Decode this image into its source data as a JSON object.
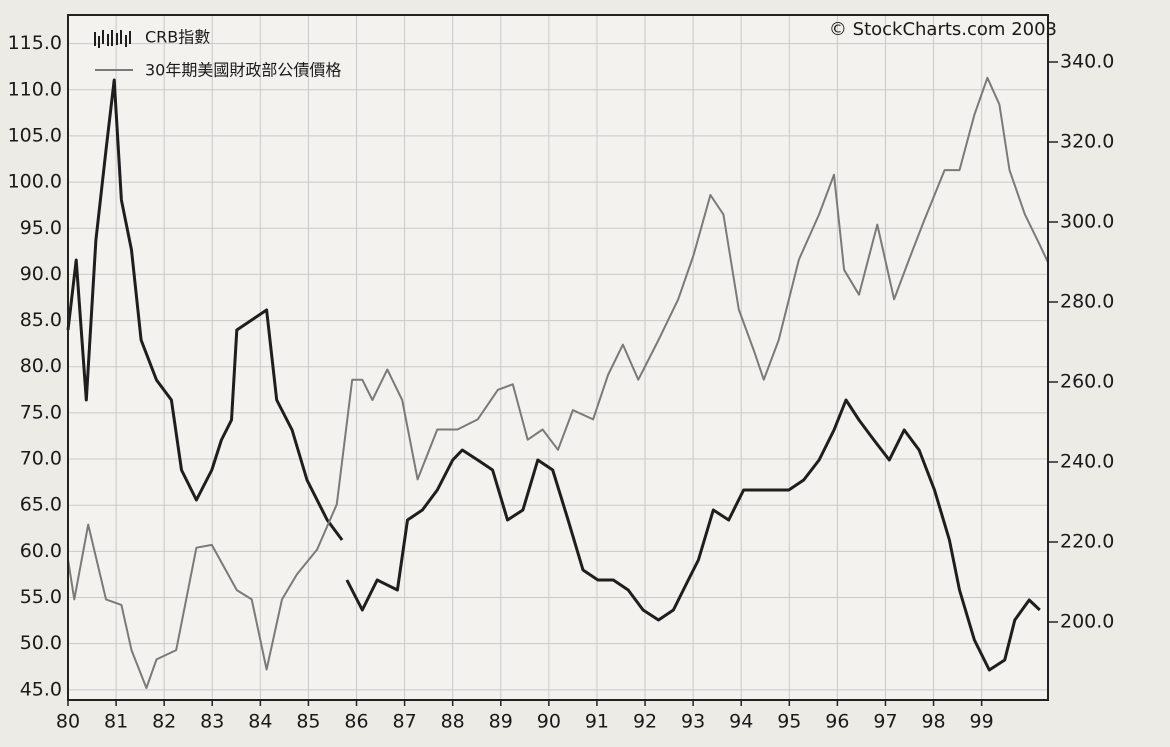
{
  "chart_data": {
    "type": "line",
    "annotation": "© StockCharts.com 2003",
    "grid": true,
    "legend": "top-left",
    "xlim": [
      1980,
      2000.38
    ],
    "xticks": [
      {
        "value": 1980,
        "label": "80"
      },
      {
        "value": 1981,
        "label": "81"
      },
      {
        "value": 1982,
        "label": "82"
      },
      {
        "value": 1983,
        "label": "83"
      },
      {
        "value": 1984,
        "label": "84"
      },
      {
        "value": 1985,
        "label": "85"
      },
      {
        "value": 1986,
        "label": "86"
      },
      {
        "value": 1987,
        "label": "87"
      },
      {
        "value": 1988,
        "label": "88"
      },
      {
        "value": 1989,
        "label": "89"
      },
      {
        "value": 1990,
        "label": "90"
      },
      {
        "value": 1991,
        "label": "91"
      },
      {
        "value": 1992,
        "label": "92"
      },
      {
        "value": 1993,
        "label": "93"
      },
      {
        "value": 1994,
        "label": "94"
      },
      {
        "value": 1995,
        "label": "95"
      },
      {
        "value": 1996,
        "label": "96"
      },
      {
        "value": 1997,
        "label": "97"
      },
      {
        "value": 1998,
        "label": "98"
      },
      {
        "value": 1999,
        "label": "99"
      }
    ],
    "ylim": [
      43.9,
      118.1
    ],
    "yticks": [
      {
        "value": 45,
        "label": "45.0"
      },
      {
        "value": 50,
        "label": "50.0"
      },
      {
        "value": 55,
        "label": "55.0"
      },
      {
        "value": 60,
        "label": "60.0"
      },
      {
        "value": 65,
        "label": "65.0"
      },
      {
        "value": 70,
        "label": "70.0"
      },
      {
        "value": 75,
        "label": "75.0"
      },
      {
        "value": 80,
        "label": "80.0"
      },
      {
        "value": 85,
        "label": "85.0"
      },
      {
        "value": 90,
        "label": "90.0"
      },
      {
        "value": 95,
        "label": "95.0"
      },
      {
        "value": 100,
        "label": "100.0"
      },
      {
        "value": 105,
        "label": "105.0"
      },
      {
        "value": 110,
        "label": "110.0"
      },
      {
        "value": 115,
        "label": "115.0"
      }
    ],
    "y2lim": [
      180.5,
      351.75
    ],
    "y2ticks": [
      {
        "value": 200,
        "label": "200.0"
      },
      {
        "value": 220,
        "label": "220.0"
      },
      {
        "value": 240,
        "label": "240.0"
      },
      {
        "value": 260,
        "label": "260.0"
      },
      {
        "value": 280,
        "label": "280.0"
      },
      {
        "value": 300,
        "label": "300.0"
      },
      {
        "value": 320,
        "label": "320.0"
      },
      {
        "value": 340,
        "label": "340.0"
      }
    ],
    "series": [
      {
        "name": "CRB指數",
        "color": "#1e1e1e",
        "axis": "y2",
        "x": [
          1980.0,
          1980.17,
          1980.38,
          1980.58,
          1980.79,
          1980.96,
          1981.11,
          1981.32,
          1981.52,
          1981.84,
          1982.15,
          1982.36,
          1982.67,
          1982.99,
          1983.19,
          1983.4,
          1983.51,
          1983.82,
          1984.13,
          1984.34,
          1984.66,
          1984.97,
          1985.39,
          1985.7,
          1985.75,
          1985.8,
          1986.12,
          1986.43,
          1986.85,
          1987.06,
          1987.37,
          1987.68,
          1988.0,
          1988.2,
          1988.52,
          1988.83,
          1989.14,
          1989.46,
          1989.77,
          1990.08,
          1990.4,
          1990.71,
          1991.02,
          1991.34,
          1991.65,
          1991.96,
          1992.28,
          1992.59,
          1992.9,
          1993.11,
          1993.42,
          1993.74,
          1994.05,
          1994.36,
          1994.68,
          1994.99,
          1995.3,
          1995.62,
          1995.93,
          1996.18,
          1996.45,
          1996.76,
          1997.08,
          1997.39,
          1997.7,
          1998.02,
          1998.33,
          1998.54,
          1998.85,
          1999.16,
          1999.48,
          1999.69,
          1999.99,
          2000.21
        ],
        "values": [
          273,
          290.5,
          255.5,
          295.5,
          318,
          335.5,
          305.5,
          293,
          270.5,
          260.5,
          255.5,
          238,
          230.5,
          238,
          245.5,
          250.5,
          273,
          275.5,
          278,
          255.5,
          248,
          235.5,
          225.5,
          220.5,
          null,
          210.5,
          203,
          210.5,
          208,
          225.5,
          228,
          233,
          240.5,
          243,
          240.5,
          238,
          225.5,
          228,
          240.5,
          238,
          225.5,
          213,
          210.5,
          210.5,
          208,
          203,
          200.5,
          203,
          210.5,
          215.5,
          228,
          225.5,
          233,
          233,
          233,
          233,
          235.5,
          240.5,
          248,
          255.5,
          250.5,
          245.5,
          240.5,
          248,
          243,
          233,
          220.5,
          208,
          195.5,
          188,
          190.5,
          200.5,
          205.5,
          203
        ]
      },
      {
        "name": "30年期美國財政部公債價格",
        "color": "#7a7a7a",
        "axis": "y",
        "x": [
          1980.0,
          1980.13,
          1980.42,
          1980.79,
          1981.11,
          1981.32,
          1981.63,
          1981.84,
          1982.25,
          1982.67,
          1982.99,
          1983.51,
          1983.82,
          1984.13,
          1984.45,
          1984.76,
          1985.18,
          1985.59,
          1985.91,
          1986.12,
          1986.33,
          1986.64,
          1986.95,
          1987.27,
          1987.68,
          1988.1,
          1988.52,
          1988.94,
          1989.25,
          1989.56,
          1989.87,
          1990.19,
          1990.5,
          1990.92,
          1991.23,
          1991.54,
          1991.86,
          1992.28,
          1992.69,
          1993.01,
          1993.36,
          1993.63,
          1993.95,
          1994.26,
          1994.47,
          1994.78,
          1995.2,
          1995.62,
          1995.93,
          1996.14,
          1996.45,
          1996.83,
          1997.18,
          1997.49,
          1997.81,
          1998.23,
          1998.54,
          1998.85,
          1999.12,
          1999.37,
          1999.58,
          1999.9,
          2000.21,
          2000.38
        ],
        "values": [
          59.1,
          54.8,
          62.9,
          54.8,
          54.2,
          49.3,
          45.2,
          48.3,
          49.3,
          60.4,
          60.7,
          55.8,
          54.8,
          47.2,
          54.8,
          57.5,
          60.2,
          65.1,
          78.6,
          78.6,
          76.4,
          79.7,
          76.4,
          67.8,
          73.2,
          73.2,
          74.3,
          77.5,
          78.1,
          72.1,
          73.2,
          71.0,
          75.3,
          74.3,
          79.1,
          82.4,
          78.6,
          82.9,
          87.3,
          92.1,
          98.6,
          96.5,
          86.2,
          81.8,
          78.6,
          82.9,
          91.6,
          96.5,
          100.8,
          90.5,
          87.8,
          95.4,
          87.3,
          91.6,
          95.9,
          101.3,
          101.3,
          107.3,
          111.3,
          108.4,
          101.3,
          96.5,
          93.2,
          91.3
        ]
      }
    ]
  }
}
